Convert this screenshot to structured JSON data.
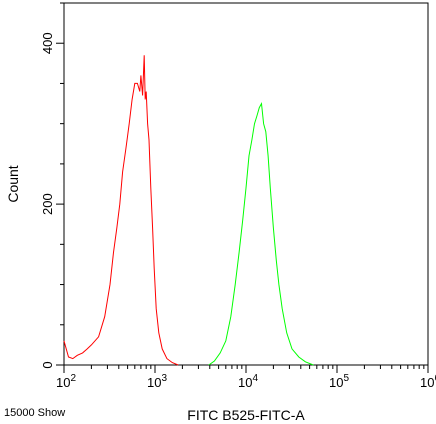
{
  "chart_data": {
    "type": "line",
    "xlabel": "FITC B525-FITC-A",
    "ylabel": "Count",
    "footnote": "15000 Show",
    "x_scale": "log",
    "xlim": [
      100,
      1000000
    ],
    "ylim": [
      0,
      450
    ],
    "x_ticks": [
      {
        "value": 100,
        "base": "10",
        "exp": "2"
      },
      {
        "value": 1000,
        "base": "10",
        "exp": "3"
      },
      {
        "value": 10000,
        "base": "10",
        "exp": "4"
      },
      {
        "value": 100000,
        "base": "10",
        "exp": "5"
      },
      {
        "value": 1000000,
        "base": "10",
        "exp": "6"
      }
    ],
    "y_ticks": [
      "0",
      "200",
      "400"
    ],
    "y_tick_values": [
      0,
      200,
      400
    ],
    "grid": false,
    "series": [
      {
        "color": "#ff0000",
        "x": [
          100,
          112,
          125,
          140,
          160,
          180,
          200,
          240,
          280,
          320,
          350,
          380,
          410,
          440,
          480,
          520,
          560,
          600,
          640,
          680,
          700,
          730,
          760,
          780,
          800,
          830,
          860,
          900,
          940,
          980,
          1030,
          1100,
          1200,
          1350,
          1550,
          1800
        ],
        "y": [
          30,
          10,
          8,
          12,
          15,
          20,
          25,
          35,
          60,
          100,
          140,
          170,
          200,
          240,
          270,
          300,
          330,
          350,
          350,
          340,
          360,
          335,
          385,
          330,
          340,
          300,
          280,
          220,
          170,
          120,
          70,
          40,
          20,
          8,
          3,
          0
        ]
      },
      {
        "color": "#00ff00",
        "x": [
          3900,
          4500,
          5200,
          6000,
          6800,
          7600,
          8400,
          9200,
          10000,
          10800,
          11600,
          12400,
          13200,
          14000,
          14800,
          15600,
          16500,
          17500,
          18500,
          20000,
          21500,
          23000,
          25000,
          28000,
          32000,
          38000,
          45000,
          55000
        ],
        "y": [
          0,
          5,
          15,
          30,
          60,
          100,
          140,
          180,
          220,
          260,
          280,
          300,
          310,
          320,
          325,
          300,
          290,
          260,
          220,
          170,
          130,
          100,
          70,
          40,
          20,
          10,
          4,
          0
        ]
      }
    ]
  }
}
